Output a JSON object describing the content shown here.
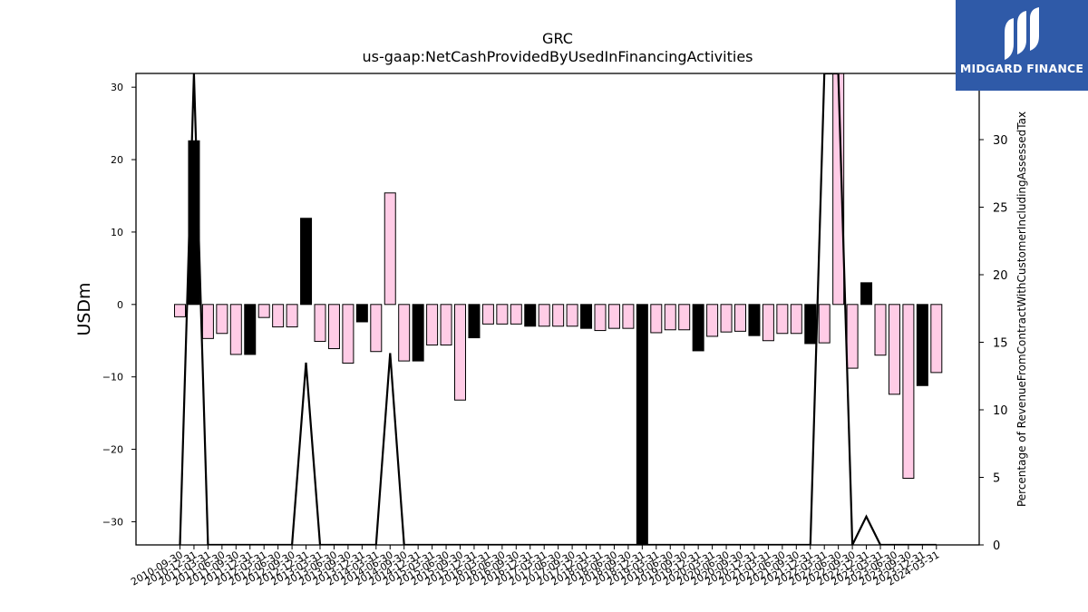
{
  "chart_data": {
    "type": "bar",
    "title": "GRC",
    "subtitle": "us-gaap:NetCashProvidedByUsedInFinancingActivities",
    "ylabel": "USDm",
    "y2label": "Percentage of RevenueFromContractWithCustomerIncludingAssessedTax",
    "ylim": [
      -33.2,
      31.9
    ],
    "y2lim": [
      0,
      34.9
    ],
    "yticks": [
      -30,
      -20,
      -10,
      0,
      10,
      20,
      30
    ],
    "y2ticks": [
      0,
      5,
      10,
      15,
      20,
      25,
      30
    ],
    "categories": [
      "2010-09-30",
      "2010-12-31",
      "2011-03-31",
      "2011-06-30",
      "2011-09-30",
      "2011-12-31",
      "2012-03-31",
      "2012-06-30",
      "2012-09-30",
      "2012-12-31",
      "2013-03-31",
      "2013-06-30",
      "2013-09-30",
      "2013-12-31",
      "2014-03-31",
      "2014-06-30",
      "2014-09-30",
      "2014-12-31",
      "2015-03-31",
      "2015-06-30",
      "2015-09-30",
      "2015-12-31",
      "2016-03-31",
      "2016-06-30",
      "2016-09-30",
      "2016-12-31",
      "2017-03-31",
      "2017-06-30",
      "2017-09-30",
      "2017-12-31",
      "2018-03-31",
      "2018-06-30",
      "2018-09-30",
      "2018-12-31",
      "2019-03-31",
      "2019-06-30",
      "2019-09-30",
      "2019-12-31",
      "2020-03-31",
      "2020-06-30",
      "2020-09-30",
      "2020-12-31",
      "2021-03-31",
      "2021-06-30",
      "2021-09-30",
      "2021-12-31",
      "2022-03-31",
      "2022-06-30",
      "2022-09-30",
      "2022-12-31",
      "2023-03-31",
      "2023-06-30",
      "2023-09-30",
      "2023-12-31",
      "2024-03-31"
    ],
    "series": [
      {
        "name": "",
        "values": [
          -1.7,
          22.6,
          -4.7,
          -4.0,
          -6.9,
          -6.9,
          -1.8,
          -3.1,
          -3.1,
          11.9,
          -5.1,
          -6.1,
          -8.1,
          -2.4,
          -6.5,
          15.4,
          -7.8,
          -7.8,
          -5.6,
          -5.6,
          -13.2,
          -4.6,
          -2.7,
          -2.7,
          -2.7,
          -3.0,
          -3.0,
          -3.0,
          -3.0,
          -3.3,
          -3.6,
          -3.3,
          -3.3,
          -33.2,
          -3.9,
          -3.5,
          -3.5,
          -6.4,
          -4.4,
          -3.8,
          -3.7,
          -4.3,
          -5.0,
          -4.0,
          -4.0,
          -5.4,
          -5.3,
          31.9,
          -8.8,
          3.0,
          -7.0,
          -12.4,
          -24.0,
          -11.2,
          -9.4
        ],
        "fill": [
          "#ffcce6",
          "#000000",
          "#ffcce6",
          "#ffcce6",
          "#ffcce6",
          "#000000",
          "#ffcce6",
          "#ffcce6",
          "#ffcce6",
          "#000000",
          "#ffcce6",
          "#ffcce6",
          "#ffcce6",
          "#000000",
          "#ffcce6",
          "#ffcce6",
          "#ffcce6",
          "#000000",
          "#ffcce6",
          "#ffcce6",
          "#ffcce6",
          "#000000",
          "#ffcce6",
          "#ffcce6",
          "#ffcce6",
          "#000000",
          "#ffcce6",
          "#ffcce6",
          "#ffcce6",
          "#000000",
          "#ffcce6",
          "#ffcce6",
          "#ffcce6",
          "#000000",
          "#ffcce6",
          "#ffcce6",
          "#ffcce6",
          "#000000",
          "#ffcce6",
          "#ffcce6",
          "#ffcce6",
          "#000000",
          "#ffcce6",
          "#ffcce6",
          "#ffcce6",
          "#000000",
          "#ffcce6",
          "#ffcce6",
          "#ffcce6",
          "#000000",
          "#ffcce6",
          "#ffcce6",
          "#ffcce6",
          "#000000",
          "#ffcce6"
        ]
      },
      {
        "name": "",
        "axis": "right",
        "type": "line",
        "values": [
          0,
          34.9,
          0,
          0,
          0,
          0,
          0,
          0,
          0,
          13.5,
          0,
          0,
          0,
          0,
          0,
          14.2,
          0,
          0,
          0,
          0,
          0,
          0,
          0,
          0,
          0,
          0,
          0,
          0,
          0,
          0,
          0,
          0,
          0,
          0,
          0,
          0,
          0,
          0,
          0,
          0,
          0,
          0,
          0,
          0,
          0,
          0,
          34.9,
          34.9,
          0,
          2.1,
          0,
          0,
          0,
          0,
          0
        ]
      }
    ],
    "colors": {
      "pink": "#ffcce6",
      "black": "#000000",
      "line": "#000000"
    },
    "grid": false,
    "legend": "none"
  },
  "logo": {
    "text": "MIDGARD FINANCE",
    "background": "#2f5aa8"
  }
}
